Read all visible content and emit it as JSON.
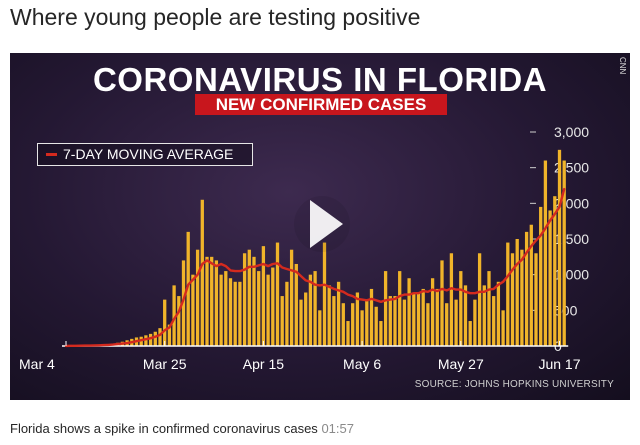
{
  "headline": "Where young people are testing positive",
  "video": {
    "badge": "CNN",
    "caption": "Florida shows a spike in confirmed coronavirus cases",
    "duration": "01:57"
  },
  "colors": {
    "bar": "#f0b42a",
    "line": "#d42a1e",
    "accent": "#c8161d"
  },
  "chart_data": {
    "type": "bar",
    "title": "CORONAVIRUS IN FLORIDA",
    "subtitle": "NEW CONFIRMED CASES",
    "legend": [
      "7-DAY MOVING AVERAGE"
    ],
    "source": "SOURCE: JOHNS HOPKINS UNIVERSITY",
    "xlabel": "",
    "ylabel": "",
    "ylim": [
      0,
      3000
    ],
    "yticks": [
      0,
      500,
      1000,
      1500,
      2000,
      2500,
      3000
    ],
    "ytick_labels": [
      "0",
      "500",
      "1,000",
      "1,500",
      "2,000",
      "2,500",
      "3,000"
    ],
    "xtick_labels": [
      {
        "label": "Mar 4",
        "day": 0
      },
      {
        "label": "Mar 25",
        "day": 21
      },
      {
        "label": "Apr 15",
        "day": 42
      },
      {
        "label": "May 6",
        "day": 63
      },
      {
        "label": "May 27",
        "day": 84
      },
      {
        "label": "Jun 17",
        "day": 105
      }
    ],
    "series": [
      {
        "name": "New confirmed cases",
        "values": [
          2,
          3,
          4,
          5,
          6,
          9,
          12,
          15,
          20,
          25,
          30,
          45,
          60,
          80,
          100,
          120,
          130,
          150,
          170,
          200,
          250,
          650,
          300,
          850,
          700,
          1200,
          1600,
          1000,
          1350,
          2050,
          1250,
          1250,
          1200,
          1000,
          1050,
          950,
          900,
          900,
          1300,
          1350,
          1250,
          1050,
          1400,
          1000,
          1100,
          1450,
          700,
          900,
          1350,
          1150,
          650,
          750,
          1000,
          1050,
          500,
          1450,
          850,
          700,
          900,
          600,
          350,
          600,
          750,
          500,
          650,
          800,
          550,
          350,
          1050,
          700,
          700,
          1050,
          650,
          950,
          750,
          750,
          800,
          600,
          950,
          800,
          1200,
          600,
          1300,
          650,
          1050,
          850,
          350,
          650,
          1300,
          850,
          1050,
          700,
          900,
          500,
          1450,
          1300,
          1500,
          1350,
          1600,
          1700,
          1300,
          1950,
          2600,
          1900,
          2100,
          2750,
          2600
        ]
      },
      {
        "name": "7-DAY MOVING AVERAGE",
        "type": "line",
        "values": [
          2,
          3,
          3,
          4,
          5,
          6,
          8,
          10,
          13,
          16,
          20,
          26,
          33,
          41,
          53,
          67,
          81,
          95,
          110,
          130,
          155,
          220,
          260,
          380,
          480,
          650,
          860,
          930,
          1000,
          1150,
          1200,
          1160,
          1120,
          1150,
          1120,
          1060,
          1050,
          1050,
          1070,
          1110,
          1110,
          1130,
          1150,
          1120,
          1150,
          1160,
          1100,
          1080,
          1060,
          1040,
          980,
          920,
          900,
          860,
          850,
          860,
          830,
          800,
          780,
          760,
          720,
          700,
          660,
          650,
          640,
          660,
          640,
          620,
          640,
          650,
          660,
          700,
          720,
          720,
          740,
          740,
          770,
          760,
          790,
          770,
          800,
          780,
          810,
          790,
          790,
          760,
          740,
          740,
          760,
          760,
          790,
          800,
          860,
          900,
          980,
          1070,
          1150,
          1210,
          1310,
          1400,
          1480,
          1550,
          1650,
          1760,
          1850,
          1950,
          2200
        ]
      }
    ]
  }
}
